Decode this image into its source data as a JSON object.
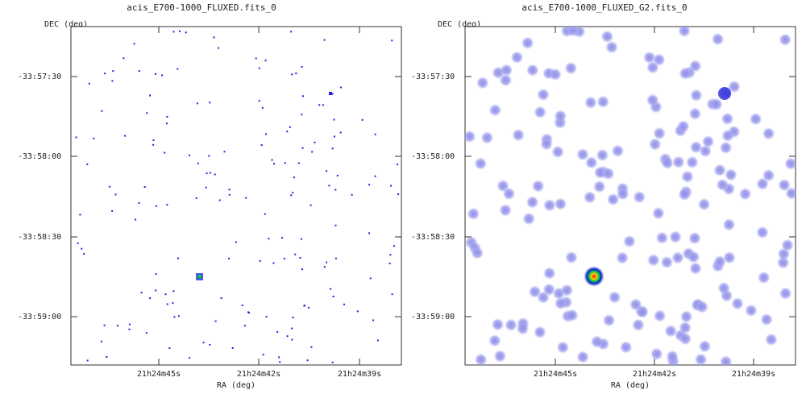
{
  "panels": [
    {
      "title": "acis_E700-1000_FLUXED.fits_0",
      "ylabel": "DEC (deg)",
      "xlabel": "RA (deg)",
      "yticks": [
        "-33:57:30",
        "-33:58:00",
        "-33:58:30",
        "-33:59:00"
      ],
      "xticks": [
        "21h24m45s",
        "21h24m42s",
        "21h24m39s"
      ]
    },
    {
      "title": "acis_E700-1000_FLUXED_G2.fits_0",
      "ylabel": "DEC (deg)",
      "xlabel": "RA (deg)",
      "yticks": [
        "-33:57:30",
        "-33:58:00",
        "-33:58:30",
        "-33:59:00"
      ],
      "xticks": [
        "21h24m45s",
        "21h24m42s",
        "21h24m39s"
      ]
    }
  ],
  "colors": {
    "point": "#2020e0",
    "blur": "#9999ee",
    "bright_core": "#ff2000",
    "axis": "#333333"
  }
}
